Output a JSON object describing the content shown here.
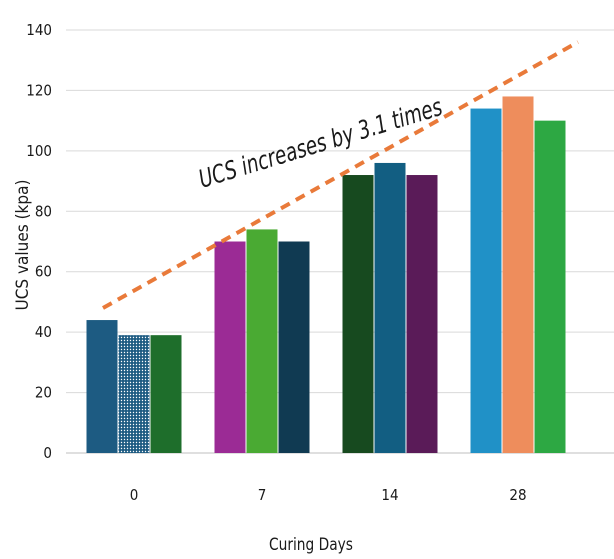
{
  "chart_data": {
    "type": "bar",
    "title": "",
    "xlabel": "Curing Days",
    "ylabel": "UCS values (kpa)",
    "categories": [
      "0",
      "7",
      "14",
      "28"
    ],
    "ylim": [
      0,
      140
    ],
    "yticks": [
      0,
      20,
      40,
      60,
      80,
      100,
      120,
      140
    ],
    "grid": true,
    "legend": "none",
    "values": [
      [
        44,
        39,
        39
      ],
      [
        70,
        74,
        70
      ],
      [
        92,
        96,
        92
      ],
      [
        114,
        118,
        110
      ]
    ],
    "bar_colors": [
      [
        "#1d5b82",
        "#1d5b82",
        "#1e6e2b"
      ],
      [
        "#9b2b95",
        "#4aaa33",
        "#103a52"
      ],
      [
        "#174a1f",
        "#125e82",
        "#5a1b58"
      ],
      [
        "#2091c7",
        "#ee8d5c",
        "#2da843"
      ]
    ],
    "bar_pattern": [
      [
        false,
        true,
        false
      ],
      [
        false,
        false,
        false
      ],
      [
        false,
        false,
        false
      ],
      [
        false,
        false,
        false
      ]
    ],
    "annotation": {
      "text": "UCS increases by 3.1 times",
      "line_from": [
        0,
        48
      ],
      "line_to": [
        28,
        136
      ],
      "line_color": "#e97a3a"
    }
  }
}
